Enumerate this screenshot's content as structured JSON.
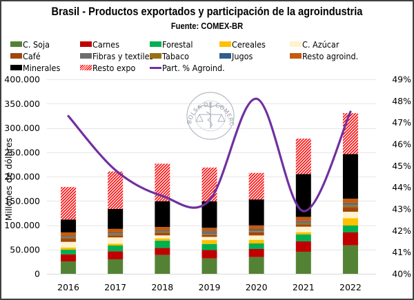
{
  "chart_data": {
    "type": "bar",
    "subtype": "stacked-bar-with-line-secondary-axis",
    "title": "Brasil - Productos exportados y participación de la agroindustria",
    "subtitle": "Fuente: COMEX-BR",
    "ylabel": "Millones de dólares",
    "y2label": "",
    "xlabel": "",
    "categories": [
      "2016",
      "2017",
      "2018",
      "2019",
      "2020",
      "2021",
      "2022"
    ],
    "ylim": [
      0,
      400000
    ],
    "yticks": [
      "0",
      "50.000",
      "100.000",
      "150.000",
      "200.000",
      "250.000",
      "300.000",
      "350.000",
      "400.000"
    ],
    "y2lim": [
      40,
      49
    ],
    "y2ticks": [
      "40%",
      "41%",
      "42%",
      "43%",
      "44%",
      "45%",
      "46%",
      "47%",
      "48%",
      "49%"
    ],
    "grid": true,
    "legend_position": "top",
    "series": [
      {
        "name": "C. Soja",
        "color": "#548235",
        "pattern": "solid",
        "values": [
          25500,
          29800,
          38900,
          31600,
          34500,
          45400,
          58700
        ]
      },
      {
        "name": "Carnes",
        "color": "#C00000",
        "pattern": "solid",
        "values": [
          14600,
          16600,
          14200,
          17500,
          16600,
          21300,
          26400
        ]
      },
      {
        "name": "Forestal",
        "color": "#00B050",
        "pattern": "solid",
        "values": [
          9500,
          11800,
          15100,
          12300,
          11300,
          14200,
          14200
        ]
      },
      {
        "name": "Cereales",
        "color": "#FFC000",
        "pattern": "solid",
        "values": [
          4300,
          3800,
          4700,
          8000,
          7500,
          4700,
          15100
        ]
      },
      {
        "name": "C. Azúcar",
        "color": "#FFF2CC",
        "pattern": "solid",
        "values": [
          11800,
          12800,
          6100,
          6500,
          9000,
          11300,
          13200
        ]
      },
      {
        "name": "Café",
        "color": "#A0470E",
        "pattern": "solid",
        "values": [
          6600,
          4300,
          4800,
          3800,
          6600,
          4700,
          9500
        ]
      },
      {
        "name": "Fibras y textiles",
        "color": "#6E6E6E",
        "pattern": "solid",
        "values": [
          1900,
          2300,
          2000,
          4300,
          2500,
          2500,
          3000
        ]
      },
      {
        "name": "Tabaco",
        "color": "#977214",
        "pattern": "solid",
        "values": [
          2000,
          2000,
          2000,
          2000,
          2000,
          2500,
          3000
        ]
      },
      {
        "name": "Jugos",
        "color": "#2F5D8C",
        "pattern": "solid",
        "values": [
          1000,
          1000,
          1000,
          1500,
          1500,
          1500,
          2000
        ]
      },
      {
        "name": "Resto agroind.",
        "color": "#C55A11",
        "pattern": "solid",
        "values": [
          8000,
          8000,
          7600,
          7100,
          8000,
          9000,
          9400
        ]
      },
      {
        "name": "Minerales",
        "color": "#000000",
        "pattern": "solid",
        "values": [
          26500,
          41000,
          53000,
          54400,
          53500,
          88000,
          91700
        ]
      },
      {
        "name": "Resto expo",
        "color": "#FF0000",
        "pattern": "hatch",
        "values": [
          66700,
          77000,
          77000,
          69500,
          54400,
          72900,
          84200
        ]
      }
    ],
    "stack_order": [
      "C. Soja",
      "Carnes",
      "Forestal",
      "Cereales",
      "C. Azúcar",
      "Café",
      "Tabaco",
      "Fibras y textiles",
      "Jugos",
      "Resto agroind.",
      "Minerales",
      "Resto expo"
    ],
    "line_series": {
      "name": "Part. % Agroind.",
      "color": "#7030A0",
      "axis": "secondary",
      "values": [
        47.3,
        44.8,
        43.6,
        43.4,
        48.1,
        42.9,
        47.5
      ]
    },
    "watermark": {
      "text": "BOLSA DE COMERCIO DE ROSARIO"
    }
  }
}
